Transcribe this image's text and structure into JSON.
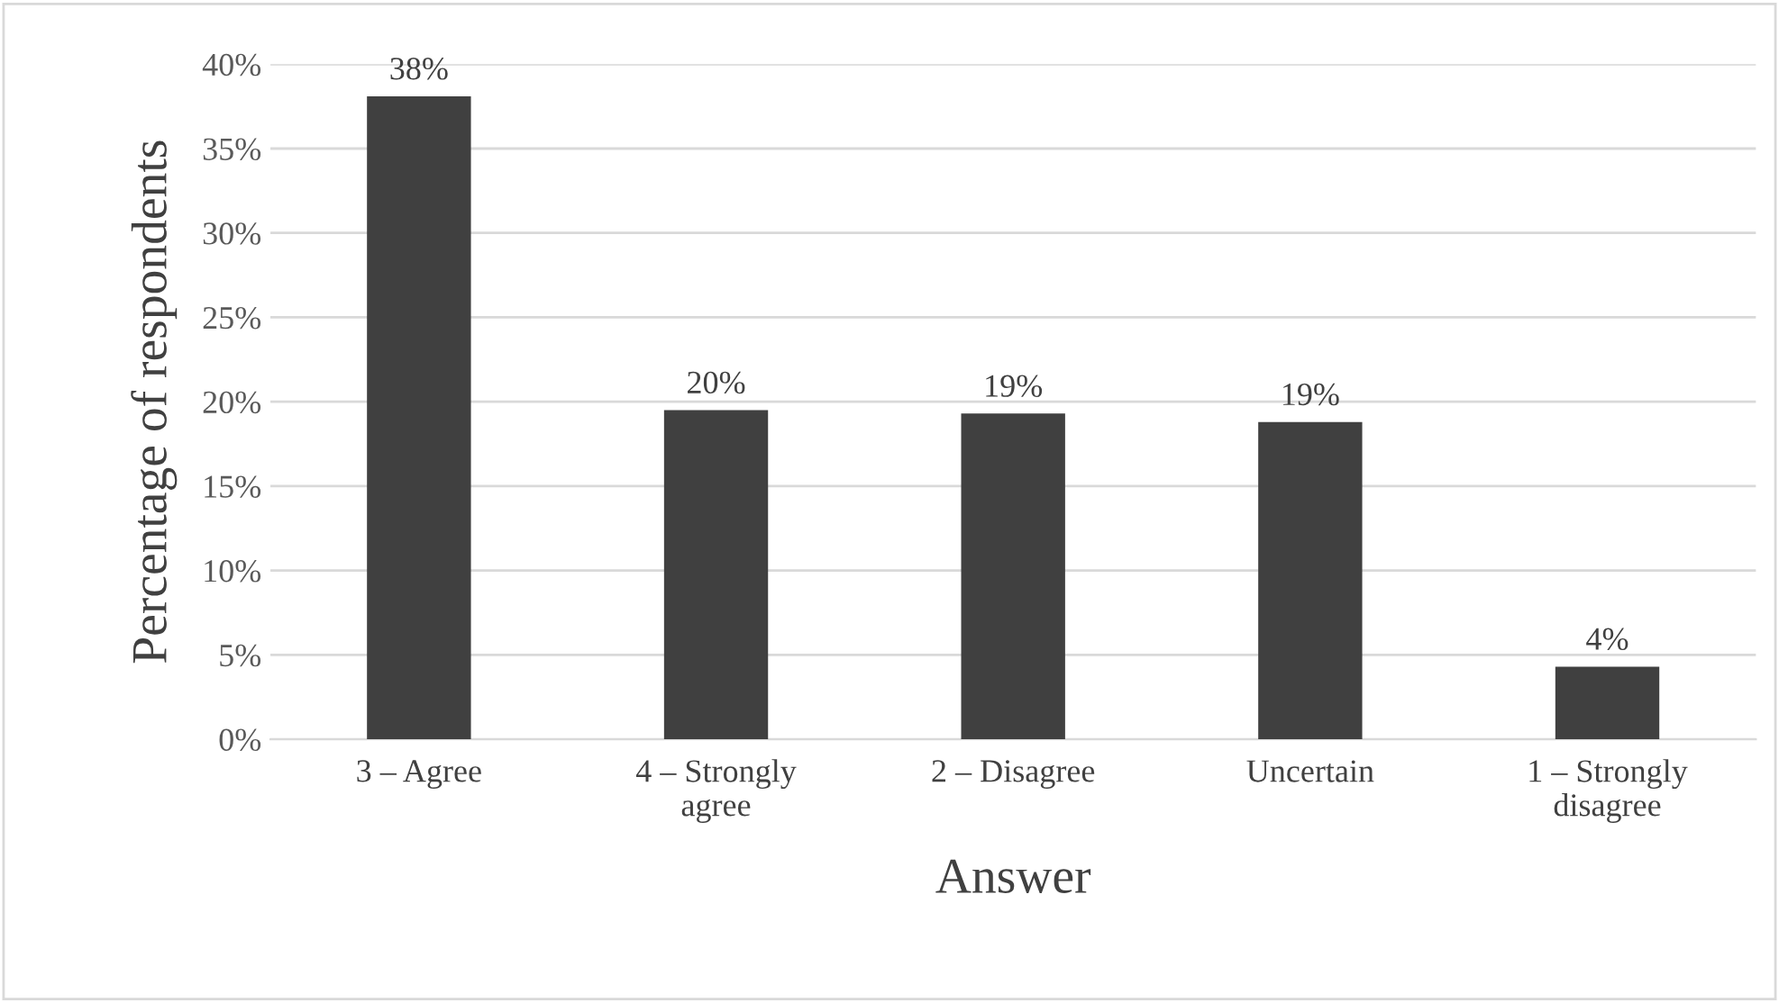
{
  "chart_data": {
    "type": "bar",
    "xlabel": "Answer",
    "ylabel": "Percentage of respondents",
    "categories": [
      "3 – Agree",
      "4 – Strongly\nagree",
      "2 – Disagree",
      "Uncertain",
      "1 – Strongly\ndisagree"
    ],
    "values": [
      38.1,
      19.5,
      19.3,
      18.8,
      4.3
    ],
    "value_labels": [
      "38%",
      "20%",
      "19%",
      "19%",
      "4%"
    ],
    "color": "#404040",
    "ylim": [
      0,
      40
    ],
    "yticks": [
      {
        "value": 0,
        "label": "0%"
      },
      {
        "value": 5,
        "label": "5%"
      },
      {
        "value": 10,
        "label": "10%"
      },
      {
        "value": 15,
        "label": "15%"
      },
      {
        "value": 20,
        "label": "20%"
      },
      {
        "value": 25,
        "label": "25%"
      },
      {
        "value": 30,
        "label": "30%"
      },
      {
        "value": 35,
        "label": "35%"
      },
      {
        "value": 40,
        "label": "40%"
      }
    ],
    "grid": "y",
    "legend": false
  }
}
